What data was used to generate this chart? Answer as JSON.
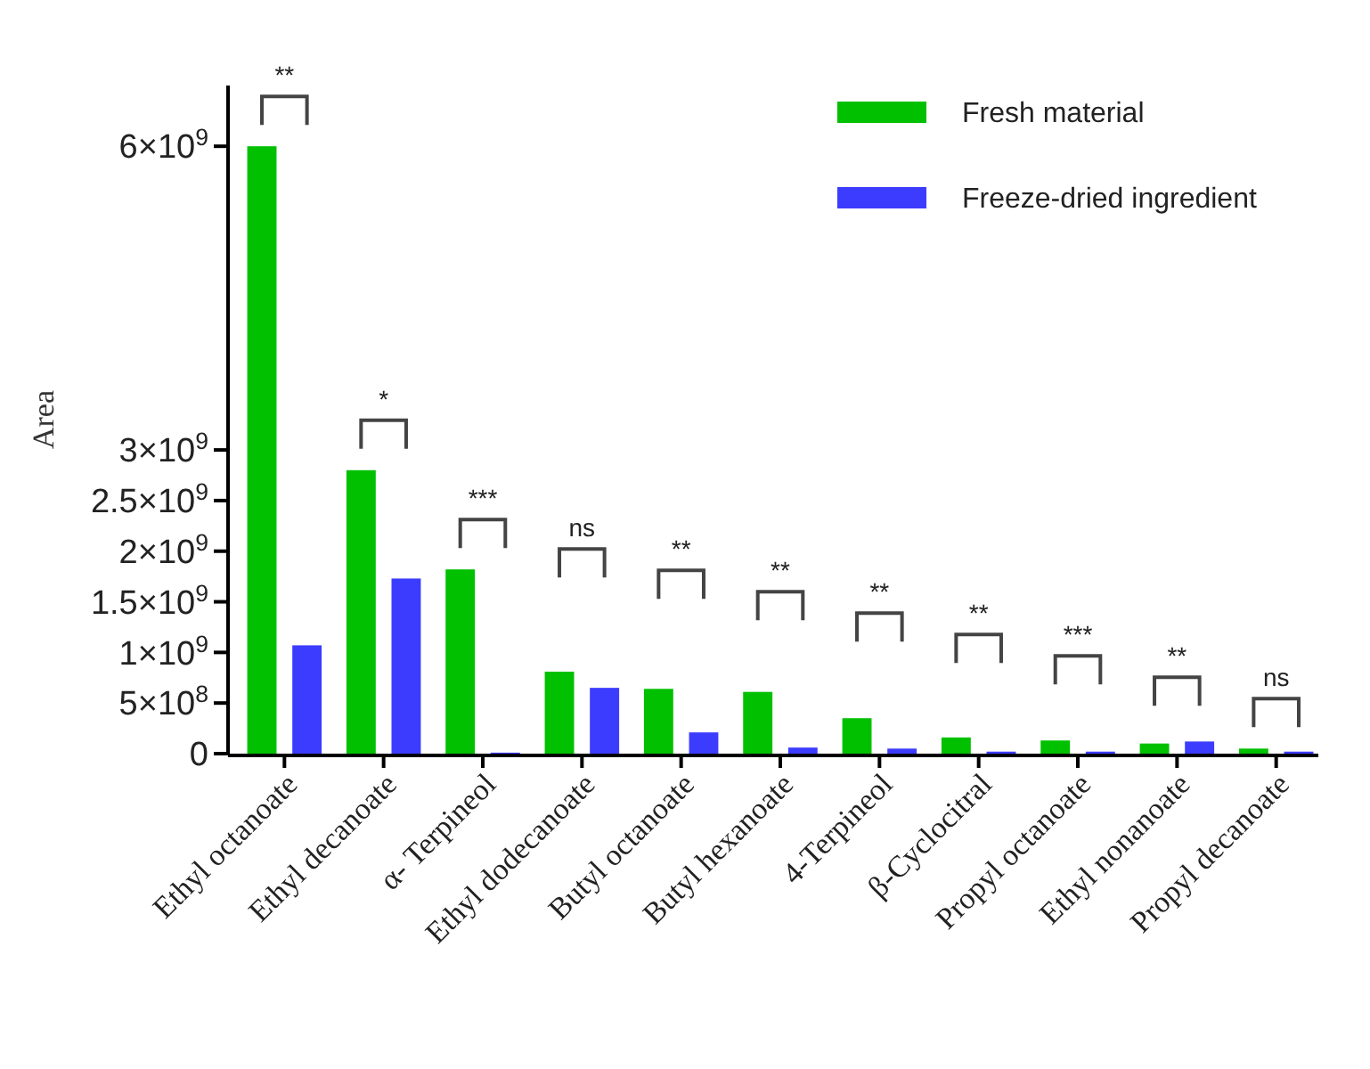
{
  "chart_data": {
    "type": "bar",
    "ylabel": "Area",
    "categories": [
      "Ethyl octanoate",
      "Ethyl decanoate",
      "α- Terpineol",
      "Ethyl dodecanoate",
      "Butyl octanoate",
      "Butyl hexanoate",
      "4-Terpineol",
      "β-Cyclocitral",
      "Propyl octanoate",
      "Ethyl nonanoate",
      "Propyl decanoate"
    ],
    "series": [
      {
        "name": "Fresh material",
        "color": "#00c000",
        "values": [
          6000000000,
          2800000000,
          1820000000,
          810000000,
          640000000,
          610000000,
          350000000,
          160000000,
          130000000,
          100000000,
          50000000
        ]
      },
      {
        "name": "Freeze-dried ingredient",
        "color": "#3c3cff",
        "values": [
          1070000000,
          1730000000,
          10000000,
          650000000,
          210000000,
          60000000,
          50000000,
          20000000,
          20000000,
          120000000,
          20000000
        ]
      }
    ],
    "ylim": [
      0,
      6600000000
    ],
    "yticks": [
      0,
      {
        "value": 500000000,
        "label": "5×10$^{8}$"
      },
      {
        "value": 1000000000,
        "label": "1×10$^{9}$"
      },
      {
        "value": 1500000000,
        "label": "1.5×10$^{9}$"
      },
      {
        "value": 2000000000,
        "label": "2×10$^{9}$"
      },
      {
        "value": 2500000000,
        "label": "2.5×10$^{9}$"
      },
      {
        "value": 3000000000,
        "label": "3×10$^{9}$"
      },
      {
        "value": 6000000000,
        "label": "6×10$^{9}$"
      }
    ],
    "legend": "top right",
    "grid": false,
    "annotations": [
      "**",
      "*",
      "***",
      "ns",
      "**",
      "**",
      "**",
      "**",
      "***",
      "**",
      "ns"
    ]
  }
}
